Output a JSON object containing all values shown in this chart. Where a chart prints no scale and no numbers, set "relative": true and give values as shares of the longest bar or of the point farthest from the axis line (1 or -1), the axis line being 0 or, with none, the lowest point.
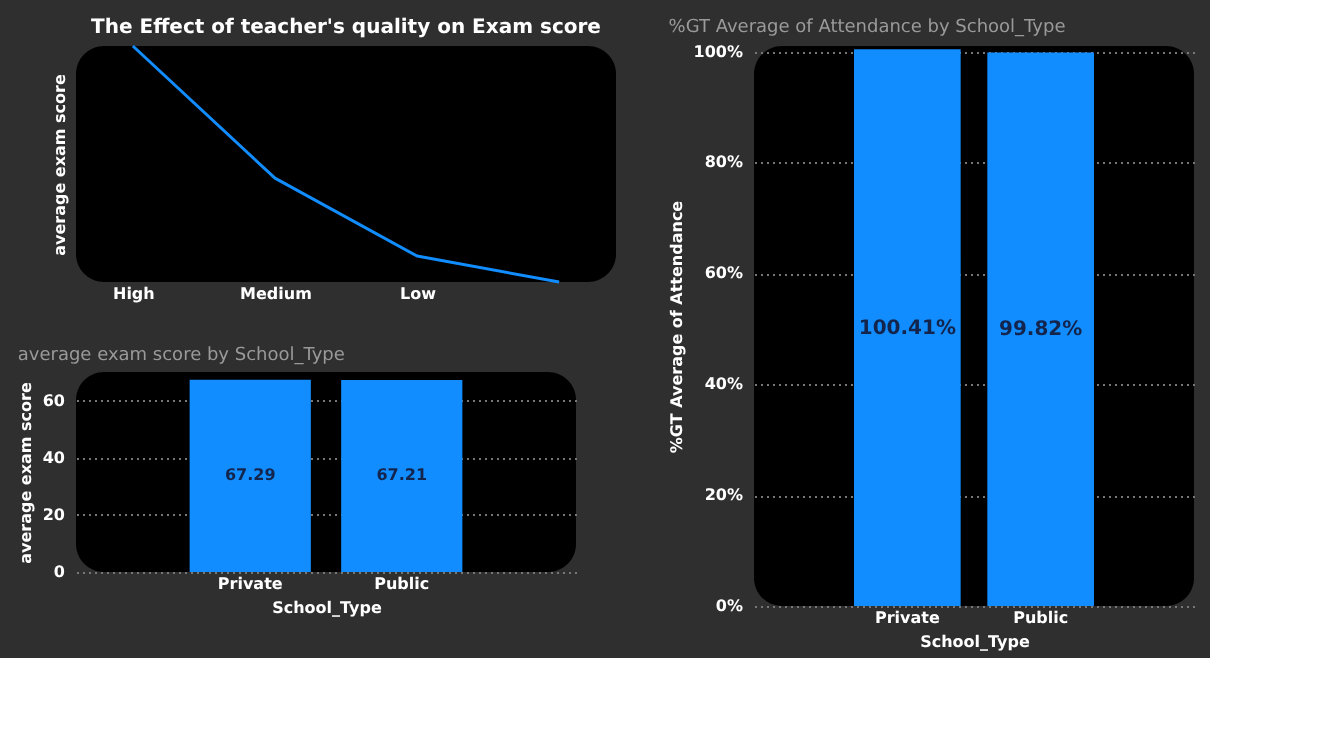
{
  "chart_data": [
    {
      "type": "line",
      "title": "The Effect of teacher's quality on Exam score",
      "ylabel": "average exam score",
      "categories": [
        "High",
        "Medium",
        "Low",
        null
      ],
      "relative": true,
      "tick_labels": "x",
      "grid": false,
      "marker": "none",
      "series": [
        {
          "color": "#118dff",
          "values": [
            1,
            0.44,
            0.11,
            0
          ]
        }
      ]
    },
    {
      "type": "bar",
      "title": "average exam score by School_Type",
      "xlabel": "School_Type",
      "ylabel": "average exam score",
      "categories": [
        "Private",
        "Public"
      ],
      "ylim": [
        0,
        70
      ],
      "yticks": [
        0,
        20,
        40,
        60
      ],
      "grid": "y",
      "data_labels": true,
      "series": [
        {
          "color": "#118dff",
          "values": [
            67.29,
            67.21
          ]
        }
      ]
    },
    {
      "type": "bar",
      "title": "%GT Average of Attendance by School_Type",
      "xlabel": "School_Type",
      "ylabel": "%GT Average of Attendance",
      "categories": [
        "Private",
        "Public"
      ],
      "ylim": [
        0,
        101
      ],
      "yticks": [
        {
          "value": 0,
          "label": "0%"
        },
        {
          "value": 20,
          "label": "20%"
        },
        {
          "value": 40,
          "label": "40%"
        },
        {
          "value": 60,
          "label": "60%"
        },
        {
          "value": 80,
          "label": "80%"
        },
        {
          "value": 100,
          "label": "100%"
        }
      ],
      "grid": "y",
      "series": [
        {
          "color": "#118dff",
          "values": [
            100.41,
            99.82
          ],
          "value_labels": [
            "100.41%",
            "99.82%"
          ]
        }
      ]
    }
  ]
}
